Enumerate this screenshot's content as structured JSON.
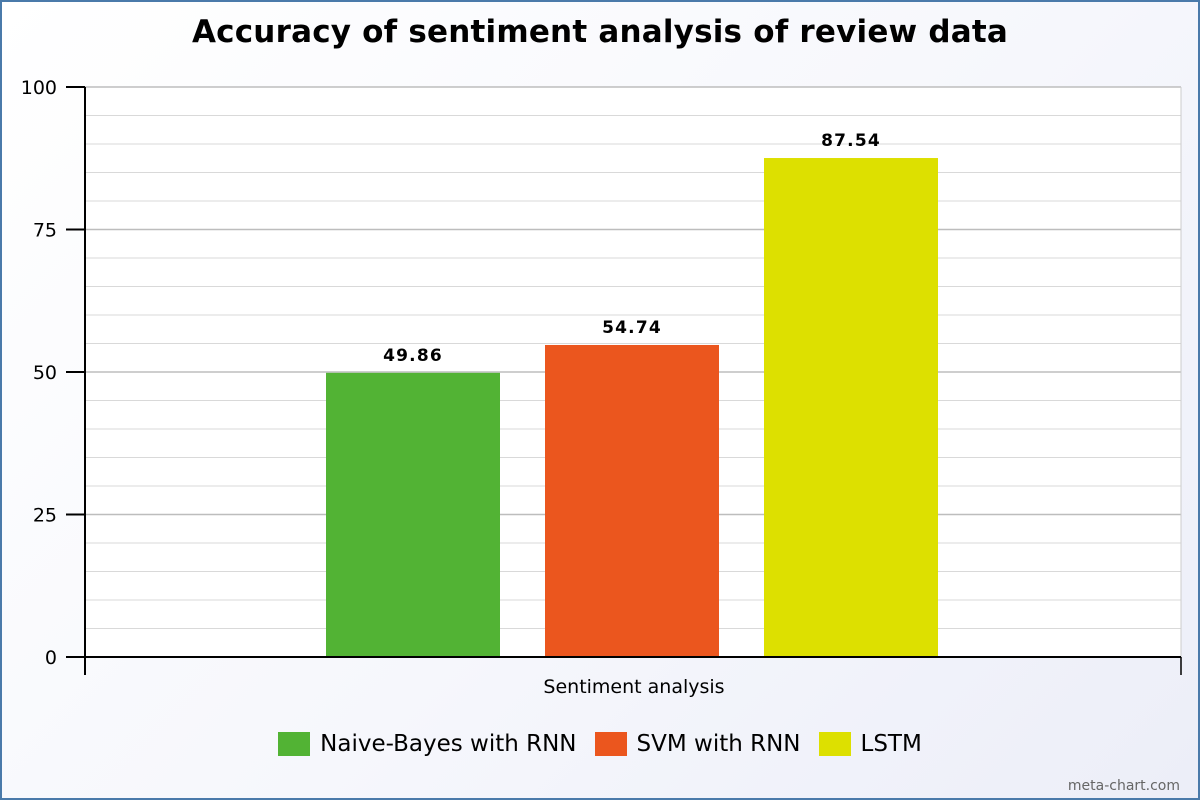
{
  "chart_data": {
    "type": "bar",
    "title": "Accuracy of sentiment analysis of review data",
    "xlabel": "Sentiment analysis",
    "ylabel": "",
    "categories": [
      "Sentiment analysis"
    ],
    "series": [
      {
        "name": "Naive-Bayes with RNN",
        "values": [
          49.86
        ],
        "color": "#52b334"
      },
      {
        "name": "SVM with RNN",
        "values": [
          54.74
        ],
        "color": "#eb561e"
      },
      {
        "name": "LSTM",
        "values": [
          87.54
        ],
        "color": "#dde000"
      }
    ],
    "ylim": [
      0,
      100
    ],
    "yticks": [
      0,
      25,
      50,
      75,
      100
    ],
    "ytick_labels": [
      "0",
      "25",
      "50",
      "75",
      "100"
    ],
    "data_labels": [
      "49.86",
      "54.74",
      "87.54"
    ],
    "grid": true,
    "legend_position": "bottom-center"
  },
  "watermark": "meta-chart.com"
}
